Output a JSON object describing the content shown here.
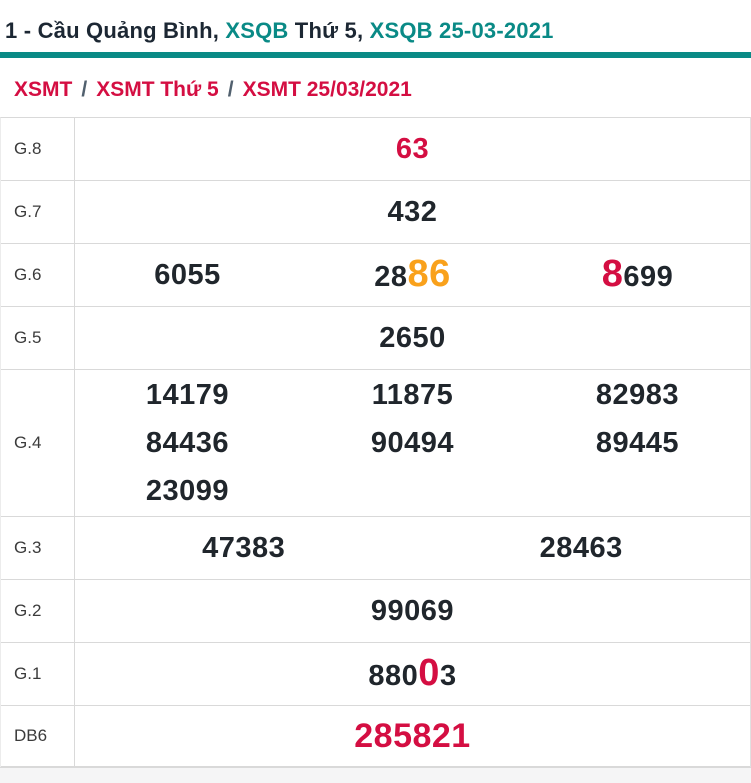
{
  "palette": {
    "teal": "#0a8a86",
    "red": "#d40e42",
    "orange": "#f9a11b",
    "dark": "#20262c",
    "title_dark": "#1c2733",
    "label_gray": "#3b3b3b",
    "footer_gray": "#f5f5f6"
  },
  "header": {
    "title_segments": [
      {
        "text": "1 - Cầu Quảng Bình, ",
        "color": "title_dark"
      },
      {
        "text": "XSQB",
        "color": "teal"
      },
      {
        "text": " Thứ 5, ",
        "color": "title_dark"
      },
      {
        "text": "XSQB 25-03-2021",
        "color": "teal"
      }
    ]
  },
  "breadcrumb": {
    "separator": "/",
    "items": [
      {
        "label": "XSMT"
      },
      {
        "label": "XSMT Thứ 5"
      },
      {
        "label": "XSMT 25/03/2021"
      }
    ]
  },
  "results_table": {
    "rows": [
      {
        "label": "G.8",
        "columns": 1,
        "cells": [
          [
            {
              "text": "63",
              "color": "red"
            }
          ]
        ]
      },
      {
        "label": "G.7",
        "columns": 1,
        "cells": [
          [
            {
              "text": "432"
            }
          ]
        ]
      },
      {
        "label": "G.6",
        "columns": 3,
        "cells": [
          [
            {
              "text": "6055"
            }
          ],
          [
            {
              "text": "28"
            },
            {
              "text": "86",
              "color": "orange",
              "emphasis": true
            }
          ],
          [
            {
              "text": "8",
              "color": "red",
              "emphasis": true
            },
            {
              "text": "699"
            }
          ]
        ]
      },
      {
        "label": "G.5",
        "columns": 1,
        "cells": [
          [
            {
              "text": "2650"
            }
          ]
        ]
      },
      {
        "label": "G.4",
        "columns": 3,
        "cells": [
          [
            {
              "text": "14179"
            }
          ],
          [
            {
              "text": "11875"
            }
          ],
          [
            {
              "text": "82983"
            }
          ],
          [
            {
              "text": "84436"
            }
          ],
          [
            {
              "text": "90494"
            }
          ],
          [
            {
              "text": "89445"
            }
          ],
          [
            {
              "text": "23099"
            }
          ]
        ]
      },
      {
        "label": "G.3",
        "columns": 2,
        "cells": [
          [
            {
              "text": "47383"
            }
          ],
          [
            {
              "text": "28463"
            }
          ]
        ]
      },
      {
        "label": "G.2",
        "columns": 1,
        "cells": [
          [
            {
              "text": "99069"
            }
          ]
        ]
      },
      {
        "label": "G.1",
        "columns": 1,
        "cells": [
          [
            {
              "text": "880"
            },
            {
              "text": "0",
              "color": "red",
              "emphasis": true
            },
            {
              "text": "3"
            }
          ]
        ]
      },
      {
        "label": "DB6",
        "columns": 1,
        "large": true,
        "cells": [
          [
            {
              "text": "285821",
              "color": "red"
            }
          ]
        ]
      }
    ]
  }
}
